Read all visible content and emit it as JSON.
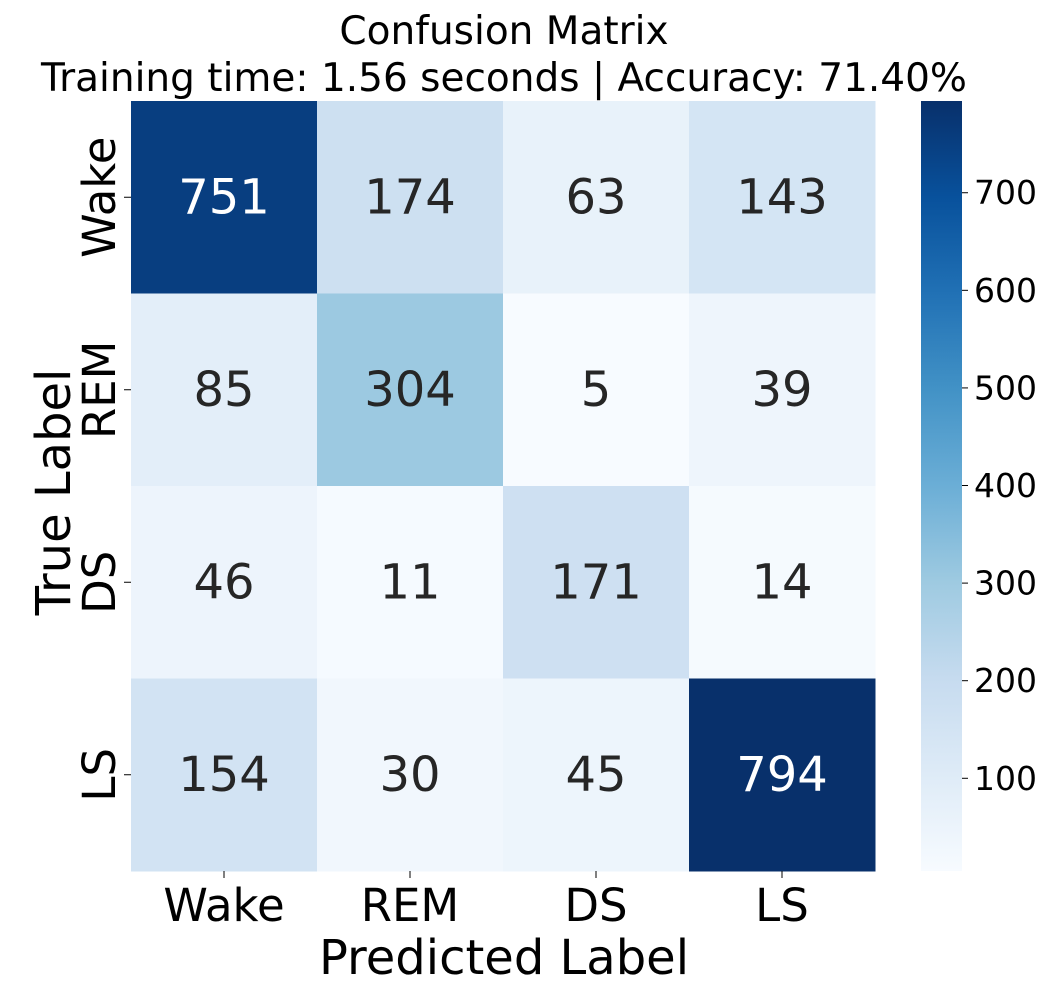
{
  "chart_data": {
    "type": "heatmap",
    "title": "Confusion Matrix",
    "subtitle": "Training time: 1.56 seconds | Accuracy: 71.40%",
    "xlabel": "Predicted Label",
    "ylabel": "True Label",
    "x_categories": [
      "Wake",
      "REM",
      "DS",
      "LS"
    ],
    "y_categories": [
      "Wake",
      "REM",
      "DS",
      "LS"
    ],
    "values": [
      [
        751,
        174,
        63,
        143
      ],
      [
        85,
        304,
        5,
        39
      ],
      [
        46,
        11,
        171,
        14
      ],
      [
        154,
        30,
        45,
        794
      ]
    ],
    "colormap": "Blues",
    "colorbar": {
      "min": 5,
      "max": 794,
      "ticks": [
        100,
        200,
        300,
        400,
        500,
        600,
        700
      ]
    },
    "colors": {
      "text_dark": "#262626",
      "text_light": "#ffffff"
    }
  }
}
